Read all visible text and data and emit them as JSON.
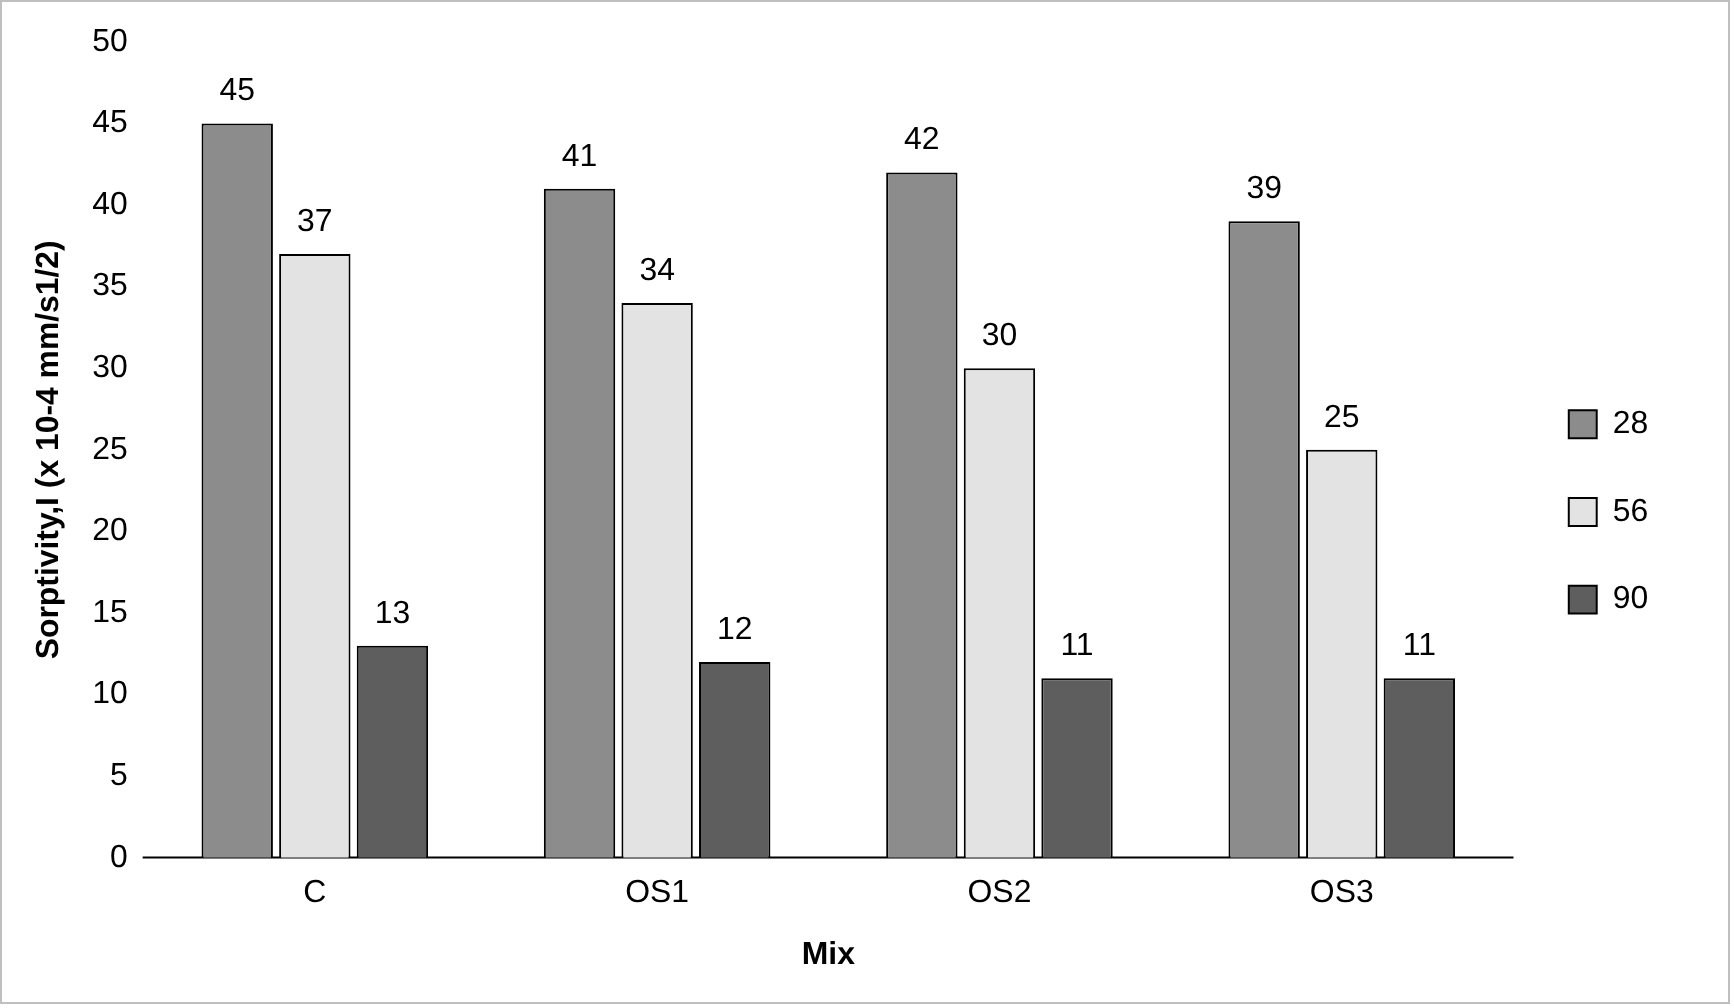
{
  "chart_data": {
    "type": "bar",
    "xlabel": "Mix",
    "ylabel": "Sorptivity,I (x 10-4 mm/s1/2)",
    "categories": [
      "C",
      "OS1",
      "OS2",
      "OS3"
    ],
    "series": [
      {
        "name": "28",
        "color": "#8c8c8c",
        "values": [
          45,
          41,
          42,
          39
        ]
      },
      {
        "name": "56",
        "color": "#e3e3e3",
        "values": [
          37,
          34,
          30,
          25
        ]
      },
      {
        "name": "90",
        "color": "#5e5e5e",
        "values": [
          13,
          12,
          11,
          11
        ]
      }
    ],
    "ylim": [
      0,
      50
    ],
    "yticks": [
      0,
      5,
      10,
      15,
      20,
      25,
      30,
      35,
      40,
      45,
      50
    ],
    "grid": false,
    "legend": "right",
    "data_labels": true
  }
}
